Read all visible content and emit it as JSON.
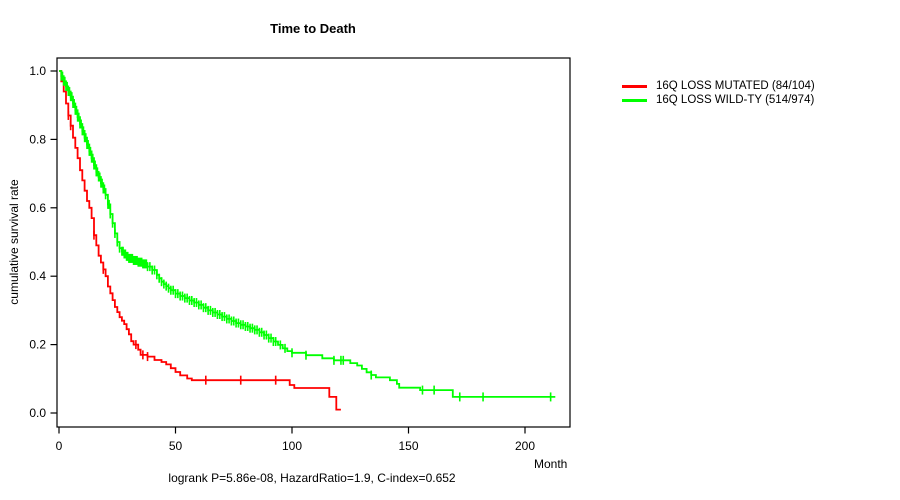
{
  "chart_data": {
    "type": "line",
    "subtype": "kaplan-meier-step-curves",
    "title": "Time to Death",
    "xlabel": "Month",
    "ylabel": "cumulative survival rate",
    "annotation": "logrank P=5.86e-08, HazardRatio=1.9, C-index=0.652",
    "xlim": [
      0,
      220
    ],
    "ylim": [
      0.0,
      1.0
    ],
    "x_ticks": [
      0,
      50,
      100,
      150,
      200
    ],
    "y_ticks": [
      "0.0",
      "0.2",
      "0.4",
      "0.6",
      "0.8",
      "1.0"
    ],
    "grid": false,
    "legend_position": "right-outside",
    "series": [
      {
        "name": "16Q LOSS MUTATED (84/104)",
        "color": "#ff0000",
        "steps": [
          [
            0,
            1.0
          ],
          [
            1,
            0.97
          ],
          [
            2,
            0.94
          ],
          [
            3,
            0.905
          ],
          [
            4,
            0.87
          ],
          [
            5,
            0.84
          ],
          [
            6,
            0.805
          ],
          [
            7,
            0.775
          ],
          [
            8,
            0.745
          ],
          [
            9,
            0.71
          ],
          [
            10,
            0.68
          ],
          [
            11,
            0.65
          ],
          [
            12,
            0.62
          ],
          [
            13,
            0.6
          ],
          [
            14,
            0.57
          ],
          [
            15,
            0.52
          ],
          [
            16,
            0.49
          ],
          [
            17,
            0.46
          ],
          [
            18,
            0.44
          ],
          [
            19,
            0.42
          ],
          [
            20,
            0.4
          ],
          [
            21,
            0.37
          ],
          [
            22,
            0.35
          ],
          [
            23,
            0.33
          ],
          [
            24,
            0.31
          ],
          [
            25,
            0.295
          ],
          [
            26,
            0.28
          ],
          [
            27,
            0.27
          ],
          [
            28,
            0.26
          ],
          [
            29,
            0.245
          ],
          [
            30,
            0.23
          ],
          [
            31,
            0.21
          ],
          [
            32,
            0.2
          ],
          [
            34,
            0.185
          ],
          [
            35,
            0.17
          ],
          [
            38,
            0.165
          ],
          [
            41,
            0.155
          ],
          [
            44,
            0.149
          ],
          [
            46,
            0.142
          ],
          [
            48,
            0.131
          ],
          [
            50,
            0.12
          ],
          [
            52,
            0.11
          ],
          [
            55,
            0.101
          ],
          [
            57,
            0.096
          ],
          [
            99,
            0.082
          ],
          [
            101,
            0.073
          ],
          [
            116,
            0.047
          ],
          [
            119,
            0.01
          ],
          [
            121,
            0.01
          ]
        ],
        "censor_marks": [
          4,
          5,
          15,
          19,
          33,
          36,
          38,
          63,
          78,
          93
        ]
      },
      {
        "name": "16Q LOSS WILD-TY (514/974)",
        "color": "#00ff00",
        "steps": [
          [
            0,
            1.0
          ],
          [
            1,
            0.985
          ],
          [
            2,
            0.97
          ],
          [
            3,
            0.955
          ],
          [
            4,
            0.94
          ],
          [
            5,
            0.925
          ],
          [
            6,
            0.905
          ],
          [
            7,
            0.885
          ],
          [
            8,
            0.865
          ],
          [
            9,
            0.845
          ],
          [
            10,
            0.825
          ],
          [
            11,
            0.805
          ],
          [
            12,
            0.785
          ],
          [
            13,
            0.765
          ],
          [
            14,
            0.745
          ],
          [
            15,
            0.725
          ],
          [
            16,
            0.705
          ],
          [
            17,
            0.69
          ],
          [
            18,
            0.672
          ],
          [
            19,
            0.655
          ],
          [
            20,
            0.638
          ],
          [
            21,
            0.61
          ],
          [
            22,
            0.582
          ],
          [
            23,
            0.555
          ],
          [
            24,
            0.525
          ],
          [
            25,
            0.5
          ],
          [
            26,
            0.482
          ],
          [
            27,
            0.473
          ],
          [
            28,
            0.465
          ],
          [
            29,
            0.458
          ],
          [
            30,
            0.452
          ],
          [
            32,
            0.446
          ],
          [
            34,
            0.441
          ],
          [
            36,
            0.436
          ],
          [
            38,
            0.428
          ],
          [
            40,
            0.418
          ],
          [
            42,
            0.404
          ],
          [
            43,
            0.394
          ],
          [
            44,
            0.384
          ],
          [
            45,
            0.377
          ],
          [
            46,
            0.371
          ],
          [
            47,
            0.365
          ],
          [
            48,
            0.359
          ],
          [
            50,
            0.349
          ],
          [
            52,
            0.342
          ],
          [
            54,
            0.336
          ],
          [
            56,
            0.329
          ],
          [
            58,
            0.323
          ],
          [
            60,
            0.316
          ],
          [
            62,
            0.308
          ],
          [
            64,
            0.3
          ],
          [
            66,
            0.294
          ],
          [
            68,
            0.288
          ],
          [
            70,
            0.282
          ],
          [
            72,
            0.275
          ],
          [
            74,
            0.269
          ],
          [
            76,
            0.263
          ],
          [
            78,
            0.258
          ],
          [
            80,
            0.253
          ],
          [
            82,
            0.248
          ],
          [
            84,
            0.243
          ],
          [
            86,
            0.236
          ],
          [
            88,
            0.228
          ],
          [
            90,
            0.219
          ],
          [
            92,
            0.209
          ],
          [
            94,
            0.199
          ],
          [
            96,
            0.189
          ],
          [
            98,
            0.181
          ],
          [
            100,
            0.176
          ],
          [
            106,
            0.169
          ],
          [
            113,
            0.16
          ],
          [
            118,
            0.154
          ],
          [
            125,
            0.146
          ],
          [
            128,
            0.139
          ],
          [
            130,
            0.129
          ],
          [
            132,
            0.119
          ],
          [
            134,
            0.111
          ],
          [
            136,
            0.104
          ],
          [
            142,
            0.096
          ],
          [
            145,
            0.085
          ],
          [
            146,
            0.074
          ],
          [
            155,
            0.067
          ],
          [
            169,
            0.047
          ],
          [
            213,
            0.047
          ]
        ],
        "censor_marks": [
          1,
          1.5,
          2,
          2.5,
          3,
          3.5,
          4,
          4.5,
          5,
          5.5,
          6,
          6.5,
          7,
          7.5,
          8,
          8.5,
          9,
          9.5,
          10,
          10.5,
          11,
          11.5,
          12,
          12.5,
          13,
          13.5,
          14,
          14.5,
          15,
          15.5,
          16,
          16.5,
          17,
          17.5,
          18,
          18.5,
          19,
          19.5,
          20,
          21,
          21.5,
          22,
          23,
          24,
          25,
          26,
          27,
          27.5,
          28,
          28.5,
          29,
          29.5,
          30,
          30.5,
          31,
          31.5,
          32,
          32.5,
          33,
          33.5,
          34,
          34.5,
          35,
          35.5,
          36,
          36.5,
          37,
          37.5,
          38,
          39,
          40,
          41,
          42,
          43,
          44,
          45,
          46,
          47,
          48,
          49,
          50,
          51,
          52,
          53,
          54,
          55,
          56,
          57,
          58,
          59,
          60,
          61,
          62,
          63,
          64,
          65,
          66,
          67,
          68,
          69,
          70,
          71,
          72,
          73,
          74,
          75,
          76,
          77,
          78,
          79,
          80,
          81,
          82,
          83,
          84,
          85,
          86,
          87,
          88,
          89,
          90,
          91,
          92,
          93,
          95,
          97,
          100,
          106,
          118,
          121,
          122,
          134,
          156,
          161,
          172,
          182,
          211
        ]
      }
    ]
  },
  "colors": {
    "axis": "#000000",
    "background": "#ffffff",
    "series_red": "#ff0000",
    "series_green": "#00ff00"
  }
}
